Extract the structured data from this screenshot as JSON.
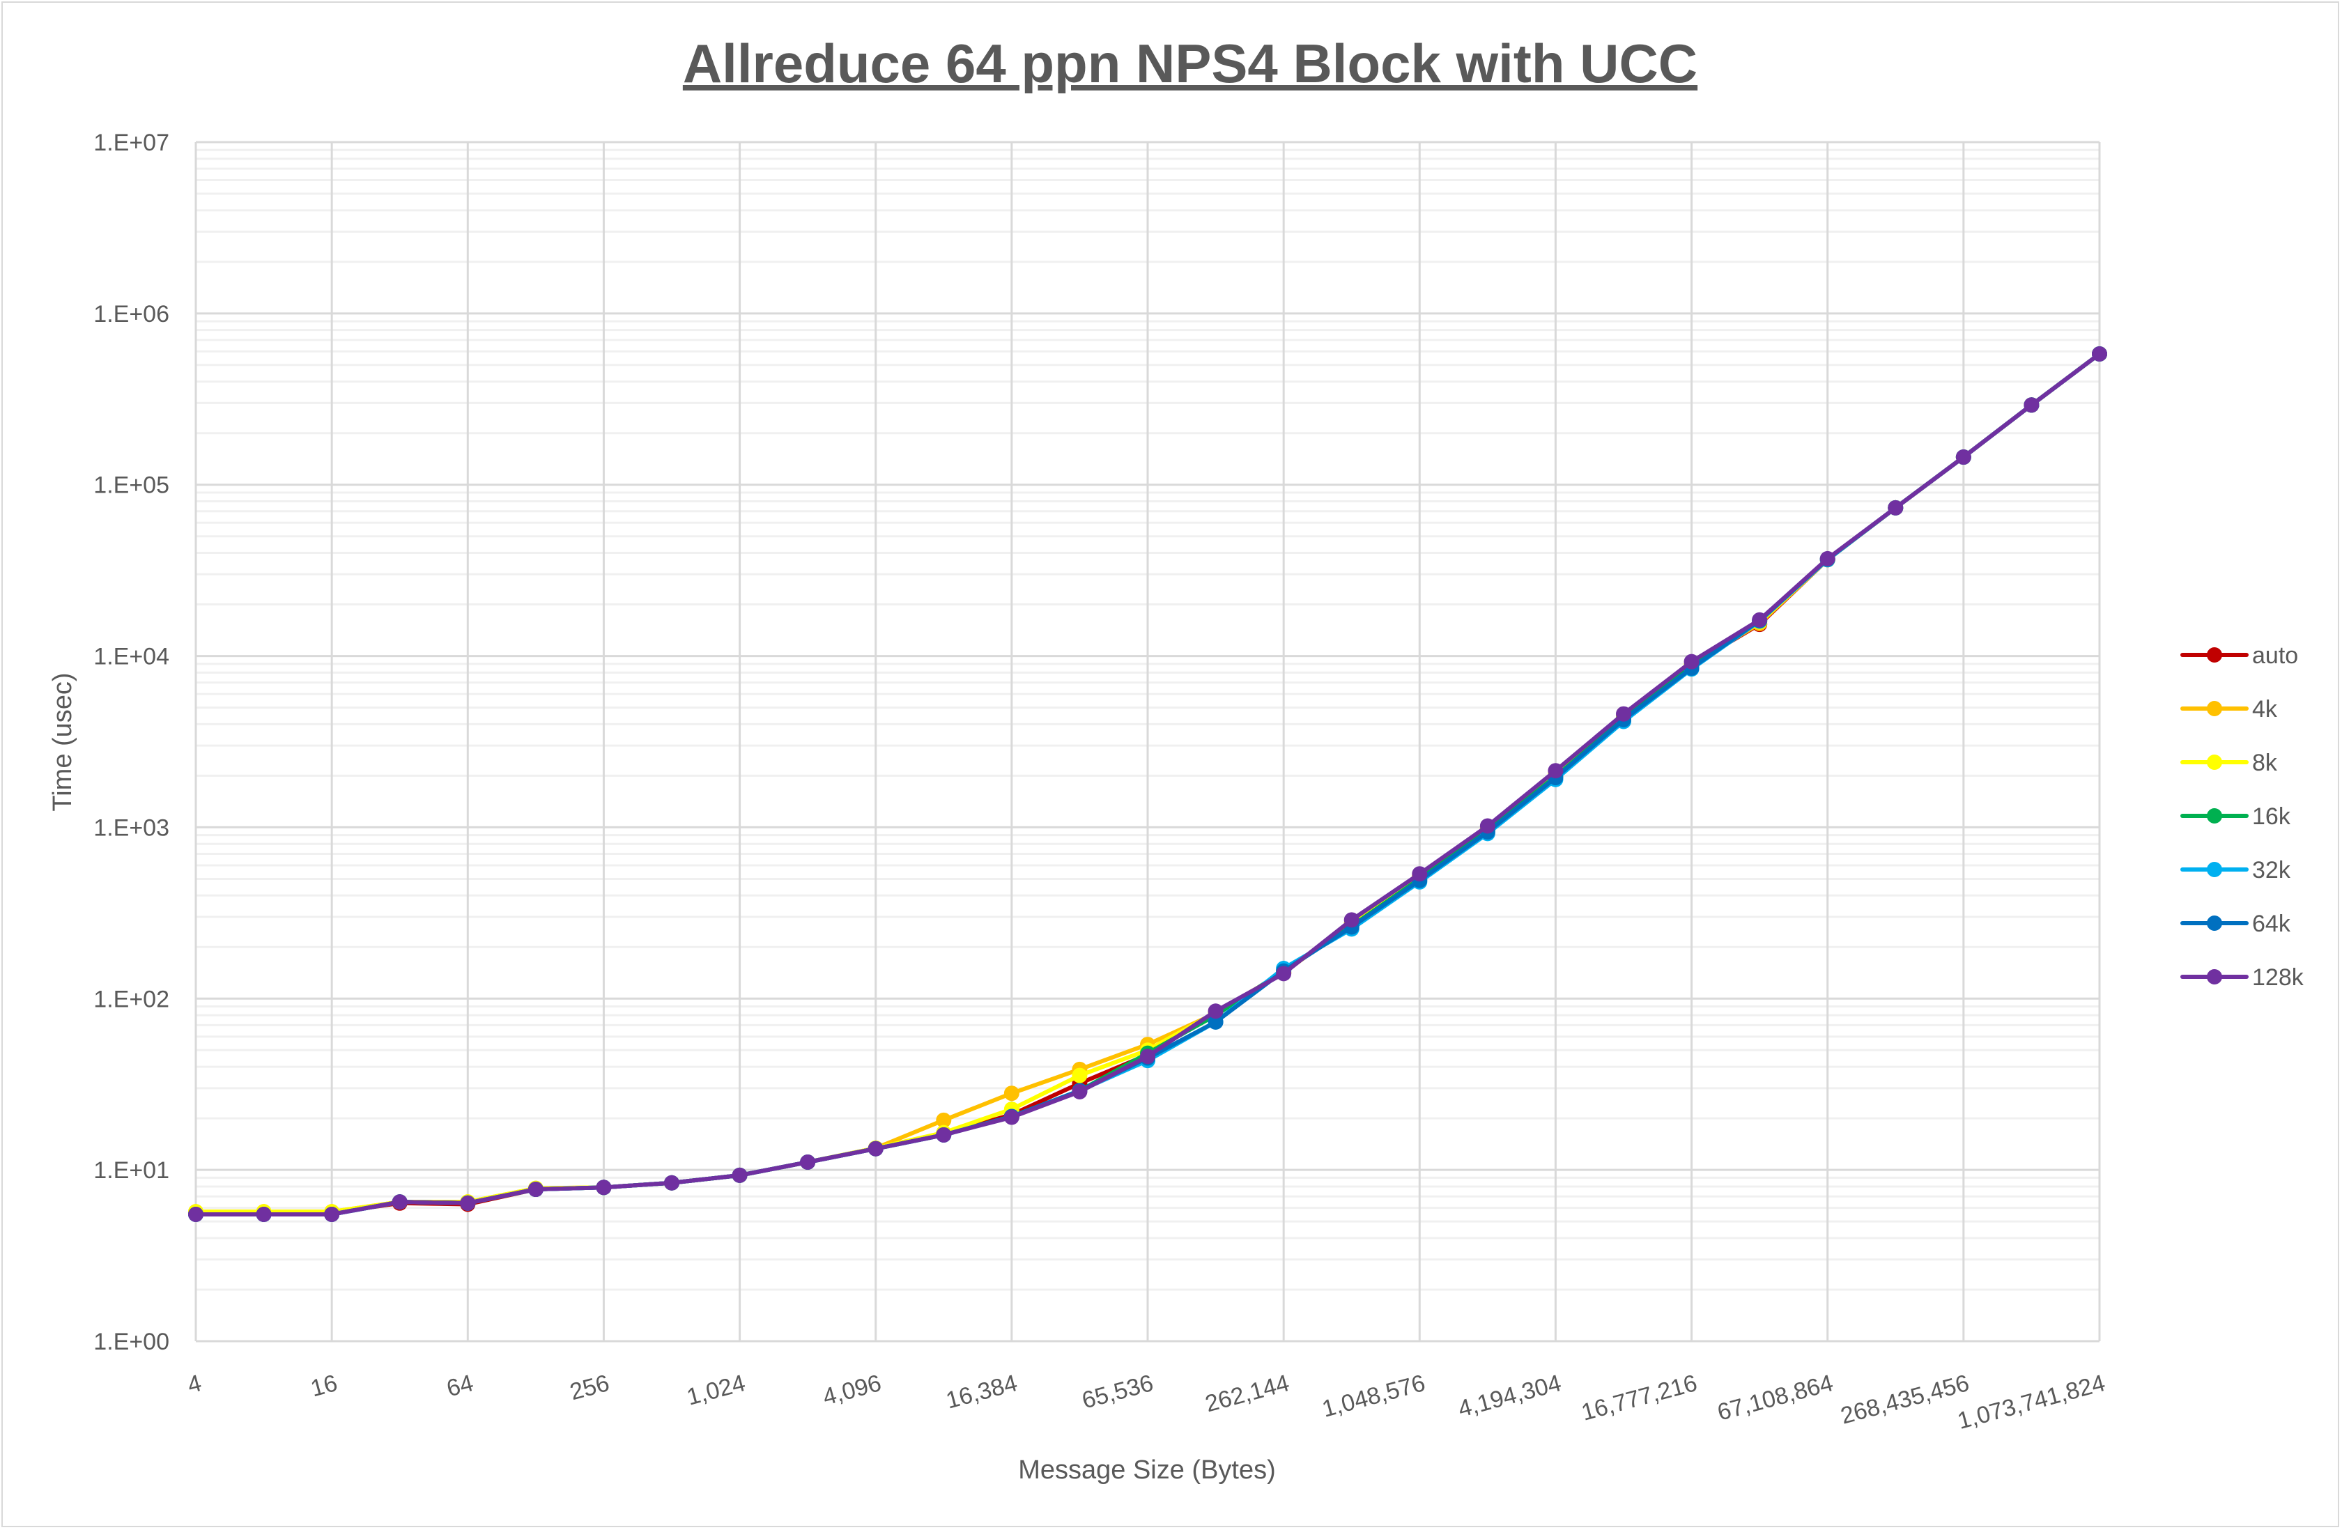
{
  "chart_data": {
    "type": "line",
    "title": "Allreduce 64 ppn NPS4 Block with UCC",
    "xlabel": "Message Size (Bytes)",
    "ylabel": "Time (usec)",
    "x_scale": "log2",
    "y_scale": "log10",
    "ylim": [
      1,
      10000000
    ],
    "grid": true,
    "legend_position": "right",
    "x": [
      4,
      8,
      16,
      32,
      64,
      128,
      256,
      512,
      1024,
      2048,
      4096,
      8192,
      16384,
      32768,
      65536,
      131072,
      262144,
      524288,
      1048576,
      2097152,
      4194304,
      8388608,
      16777216,
      33554432,
      67108864,
      134217728,
      268435456,
      536870912,
      1073741824
    ],
    "x_tick_labels": [
      "4",
      "16",
      "64",
      "256",
      "1,024",
      "4,096",
      "16,384",
      "65,536",
      "262,144",
      "1,048,576",
      "4,194,304",
      "16,777,216",
      "67,108,864",
      "268,435,456",
      "1,073,741,824"
    ],
    "y_tick_labels": [
      "1.E+00",
      "1.E+01",
      "1.E+02",
      "1.E+03",
      "1.E+04",
      "1.E+05",
      "1.E+06",
      "1.E+07"
    ],
    "series": [
      {
        "name": "auto",
        "color": "#C00000",
        "values": [
          5.6,
          5.6,
          5.6,
          6.4,
          6.3,
          7.7,
          7.9,
          8.4,
          9.3,
          11.1,
          13.3,
          16.2,
          21,
          32,
          47,
          82,
          142,
          275,
          520,
          980,
          2050,
          4400,
          8900,
          15300,
          36500,
          73300,
          145000,
          292000,
          580000
        ]
      },
      {
        "name": "4k",
        "color": "#FFC000",
        "values": [
          5.7,
          5.7,
          5.7,
          6.5,
          6.5,
          7.8,
          7.9,
          8.4,
          9.3,
          11.1,
          13.4,
          19.5,
          28,
          38.6,
          54,
          82,
          142,
          275,
          520,
          980,
          2050,
          4400,
          8900,
          15500,
          36500,
          73300,
          145000,
          292000,
          580000
        ]
      },
      {
        "name": "8k",
        "color": "#FFFF00",
        "values": [
          5.7,
          5.7,
          5.7,
          6.5,
          6.5,
          7.8,
          7.9,
          8.4,
          9.3,
          11.1,
          13.4,
          16.5,
          22.6,
          35.6,
          50,
          83,
          142,
          275,
          520,
          980,
          2050,
          4400,
          8900,
          15800,
          36500,
          73300,
          145000,
          292000,
          580000
        ]
      },
      {
        "name": "16k",
        "color": "#00B050",
        "values": [
          5.5,
          5.5,
          5.5,
          6.5,
          6.4,
          7.7,
          7.9,
          8.4,
          9.3,
          11.1,
          13.3,
          16.0,
          20.5,
          29,
          48,
          80,
          145,
          265,
          500,
          960,
          1980,
          4300,
          8700,
          16000,
          36800,
          73300,
          145000,
          292000,
          580000
        ]
      },
      {
        "name": "32k",
        "color": "#00B0F0",
        "values": [
          5.5,
          5.5,
          5.5,
          6.5,
          6.4,
          7.7,
          7.9,
          8.4,
          9.3,
          11.1,
          13.3,
          16.0,
          20.5,
          29,
          43.5,
          73,
          150,
          255,
          480,
          920,
          1900,
          4150,
          8400,
          16000,
          36500,
          73300,
          145000,
          292000,
          580000
        ]
      },
      {
        "name": "64k",
        "color": "#0070C0",
        "values": [
          5.5,
          5.5,
          5.5,
          6.5,
          6.4,
          7.7,
          7.9,
          8.4,
          9.3,
          11.1,
          13.3,
          16.0,
          20.5,
          29,
          45,
          73,
          145,
          262,
          490,
          940,
          1950,
          4250,
          8500,
          16100,
          36800,
          73300,
          145000,
          292000,
          580000
        ]
      },
      {
        "name": "128k",
        "color": "#7030A0",
        "values": [
          5.5,
          5.5,
          5.5,
          6.5,
          6.4,
          7.7,
          7.9,
          8.4,
          9.3,
          11.1,
          13.3,
          16.0,
          20.3,
          28.6,
          46,
          84.5,
          140,
          288,
          535,
          1018,
          2140,
          4590,
          9270,
          16250,
          37000,
          73300,
          145000,
          292000,
          580000
        ]
      }
    ]
  }
}
